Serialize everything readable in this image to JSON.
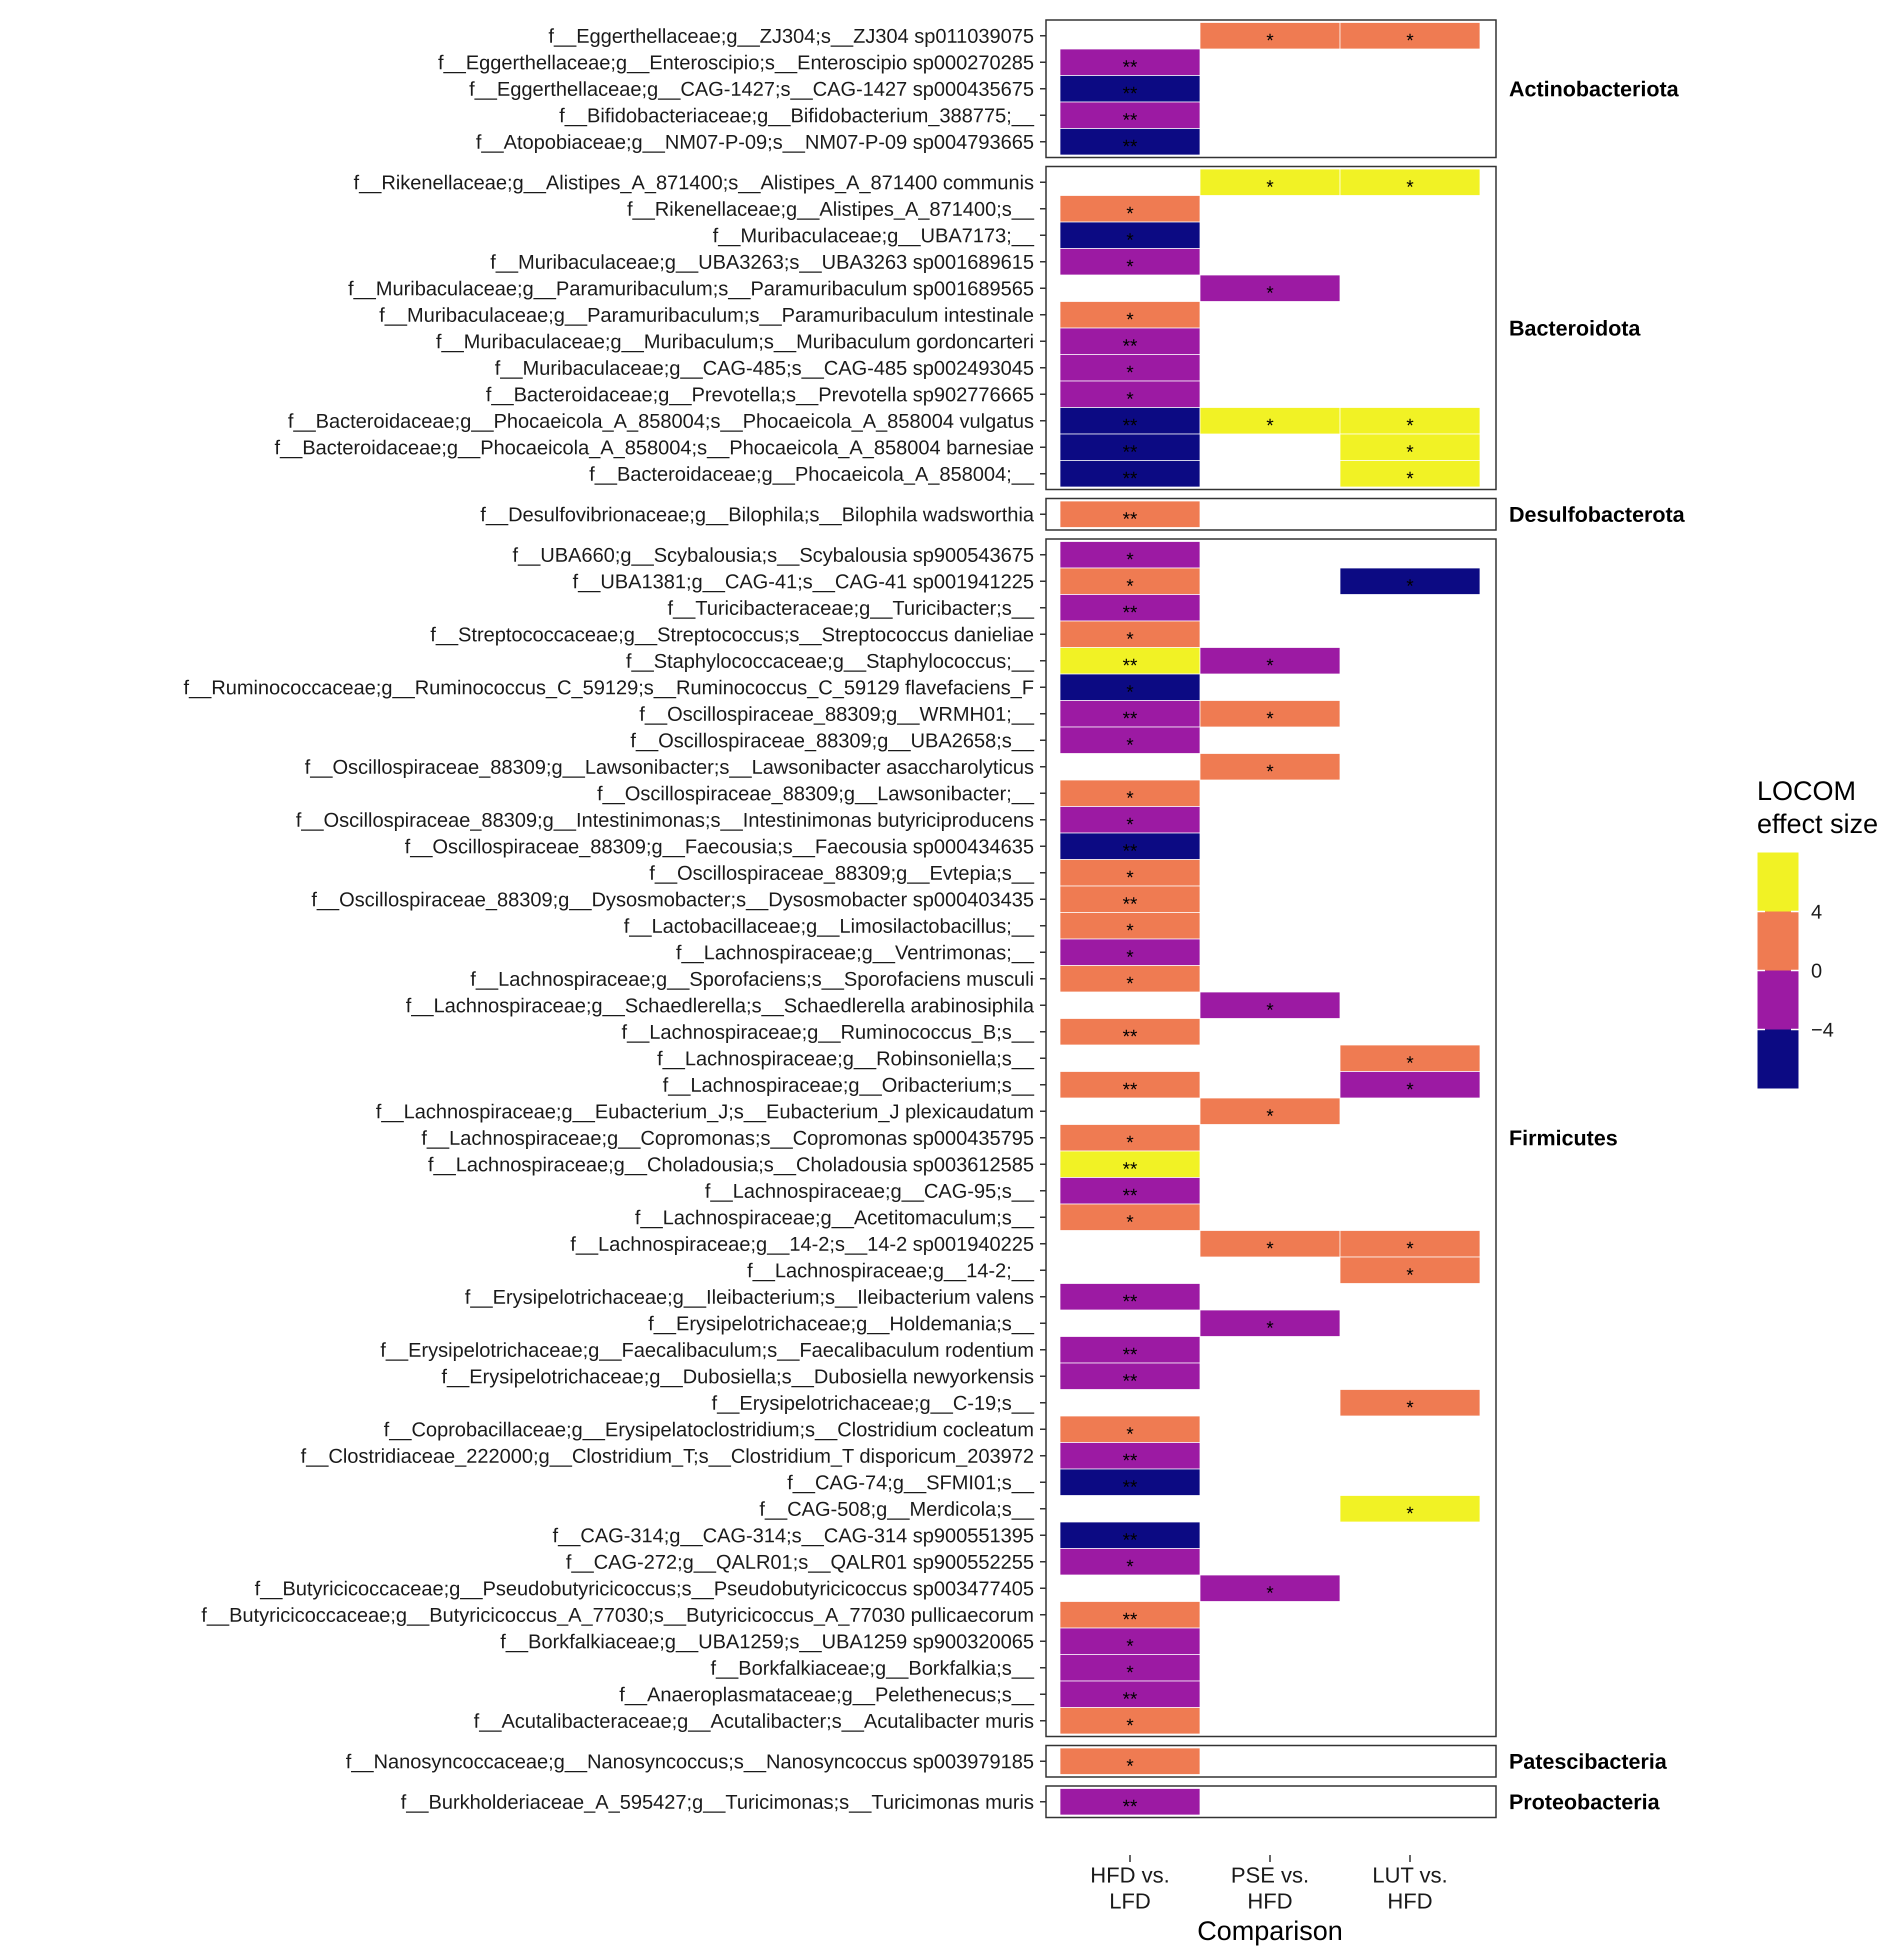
{
  "chart_data": {
    "type": "heatmap",
    "x_title": "Comparison",
    "columns": [
      "HFD vs.\nLFD",
      "PSE vs.\nHFD",
      "LUT vs.\nHFD"
    ],
    "legend": {
      "title": "LOCOM\neffect size",
      "bins": [
        {
          "color": "#f1f225"
        },
        {
          "color": "#ef7b52"
        },
        {
          "color": "#9c1aa3"
        },
        {
          "color": "#0c0a83"
        }
      ],
      "tick_labels": [
        "4",
        "0",
        "−4"
      ]
    },
    "colors": {
      "Y": "#f1f225",
      "O": "#ef7b52",
      "P": "#9c1aa3",
      "N": "#0c0a83"
    },
    "color_key": {
      "Y": "> 4",
      "O": "0 to 4",
      "P": "-4 to 0",
      "N": "< -4"
    },
    "groups": [
      {
        "phylum": "Actinobacteriota",
        "rows": [
          {
            "label": "f__Eggerthellaceae;g__ZJ304;s__ZJ304 sp011039075",
            "cells": [
              null,
              [
                "O",
                "*"
              ],
              [
                "O",
                "*"
              ]
            ]
          },
          {
            "label": "f__Eggerthellaceae;g__Enteroscipio;s__Enteroscipio sp000270285",
            "cells": [
              [
                "P",
                "**"
              ],
              null,
              null
            ]
          },
          {
            "label": "f__Eggerthellaceae;g__CAG-1427;s__CAG-1427 sp000435675",
            "cells": [
              [
                "N",
                "**"
              ],
              null,
              null
            ]
          },
          {
            "label": "f__Bifidobacteriaceae;g__Bifidobacterium_388775;__",
            "cells": [
              [
                "P",
                "**"
              ],
              null,
              null
            ]
          },
          {
            "label": "f__Atopobiaceae;g__NM07-P-09;s__NM07-P-09 sp004793665",
            "cells": [
              [
                "N",
                "**"
              ],
              null,
              null
            ]
          }
        ]
      },
      {
        "phylum": "Bacteroidota",
        "rows": [
          {
            "label": "f__Rikenellaceae;g__Alistipes_A_871400;s__Alistipes_A_871400 communis",
            "cells": [
              null,
              [
                "Y",
                "*"
              ],
              [
                "Y",
                "*"
              ]
            ]
          },
          {
            "label": "f__Rikenellaceae;g__Alistipes_A_871400;s__",
            "cells": [
              [
                "O",
                "*"
              ],
              null,
              null
            ]
          },
          {
            "label": "f__Muribaculaceae;g__UBA7173;__",
            "cells": [
              [
                "N",
                "*"
              ],
              null,
              null
            ]
          },
          {
            "label": "f__Muribaculaceae;g__UBA3263;s__UBA3263 sp001689615",
            "cells": [
              [
                "P",
                "*"
              ],
              null,
              null
            ]
          },
          {
            "label": "f__Muribaculaceae;g__Paramuribaculum;s__Paramuribaculum sp001689565",
            "cells": [
              null,
              [
                "P",
                "*"
              ],
              null
            ]
          },
          {
            "label": "f__Muribaculaceae;g__Paramuribaculum;s__Paramuribaculum intestinale",
            "cells": [
              [
                "O",
                "*"
              ],
              null,
              null
            ]
          },
          {
            "label": "f__Muribaculaceae;g__Muribaculum;s__Muribaculum gordoncarteri",
            "cells": [
              [
                "P",
                "**"
              ],
              null,
              null
            ]
          },
          {
            "label": "f__Muribaculaceae;g__CAG-485;s__CAG-485 sp002493045",
            "cells": [
              [
                "P",
                "*"
              ],
              null,
              null
            ]
          },
          {
            "label": "f__Bacteroidaceae;g__Prevotella;s__Prevotella sp902776665",
            "cells": [
              [
                "P",
                "*"
              ],
              null,
              null
            ]
          },
          {
            "label": "f__Bacteroidaceae;g__Phocaeicola_A_858004;s__Phocaeicola_A_858004 vulgatus",
            "cells": [
              [
                "N",
                "**"
              ],
              [
                "Y",
                "*"
              ],
              [
                "Y",
                "*"
              ]
            ]
          },
          {
            "label": "f__Bacteroidaceae;g__Phocaeicola_A_858004;s__Phocaeicola_A_858004 barnesiae",
            "cells": [
              [
                "N",
                "**"
              ],
              null,
              [
                "Y",
                "*"
              ]
            ]
          },
          {
            "label": "f__Bacteroidaceae;g__Phocaeicola_A_858004;__",
            "cells": [
              [
                "N",
                "**"
              ],
              null,
              [
                "Y",
                "*"
              ]
            ]
          }
        ]
      },
      {
        "phylum": "Desulfobacterota",
        "rows": [
          {
            "label": "f__Desulfovibrionaceae;g__Bilophila;s__Bilophila wadsworthia",
            "cells": [
              [
                "O",
                "**"
              ],
              null,
              null
            ]
          }
        ]
      },
      {
        "phylum": "Firmicutes",
        "rows": [
          {
            "label": "f__UBA660;g__Scybalousia;s__Scybalousia sp900543675",
            "cells": [
              [
                "P",
                "*"
              ],
              null,
              null
            ]
          },
          {
            "label": "f__UBA1381;g__CAG-41;s__CAG-41 sp001941225",
            "cells": [
              [
                "O",
                "*"
              ],
              null,
              [
                "N",
                "*"
              ]
            ]
          },
          {
            "label": "f__Turicibacteraceae;g__Turicibacter;s__",
            "cells": [
              [
                "P",
                "**"
              ],
              null,
              null
            ]
          },
          {
            "label": "f__Streptococcaceae;g__Streptococcus;s__Streptococcus danieliae",
            "cells": [
              [
                "O",
                "*"
              ],
              null,
              null
            ]
          },
          {
            "label": "f__Staphylococcaceae;g__Staphylococcus;__",
            "cells": [
              [
                "Y",
                "**"
              ],
              [
                "P",
                "*"
              ],
              null
            ]
          },
          {
            "label": "f__Ruminococcaceae;g__Ruminococcus_C_59129;s__Ruminococcus_C_59129 flavefaciens_F",
            "cells": [
              [
                "N",
                "*"
              ],
              null,
              null
            ]
          },
          {
            "label": "f__Oscillospiraceae_88309;g__WRMH01;__",
            "cells": [
              [
                "P",
                "**"
              ],
              [
                "O",
                "*"
              ],
              null
            ]
          },
          {
            "label": "f__Oscillospiraceae_88309;g__UBA2658;s__",
            "cells": [
              [
                "P",
                "*"
              ],
              null,
              null
            ]
          },
          {
            "label": "f__Oscillospiraceae_88309;g__Lawsonibacter;s__Lawsonibacter asaccharolyticus",
            "cells": [
              null,
              [
                "O",
                "*"
              ],
              null
            ]
          },
          {
            "label": "f__Oscillospiraceae_88309;g__Lawsonibacter;__",
            "cells": [
              [
                "O",
                "*"
              ],
              null,
              null
            ]
          },
          {
            "label": "f__Oscillospiraceae_88309;g__Intestinimonas;s__Intestinimonas butyriciproducens",
            "cells": [
              [
                "P",
                "*"
              ],
              null,
              null
            ]
          },
          {
            "label": "f__Oscillospiraceae_88309;g__Faecousia;s__Faecousia sp000434635",
            "cells": [
              [
                "N",
                "**"
              ],
              null,
              null
            ]
          },
          {
            "label": "f__Oscillospiraceae_88309;g__Evtepia;s__",
            "cells": [
              [
                "O",
                "*"
              ],
              null,
              null
            ]
          },
          {
            "label": "f__Oscillospiraceae_88309;g__Dysosmobacter;s__Dysosmobacter sp000403435",
            "cells": [
              [
                "O",
                "**"
              ],
              null,
              null
            ]
          },
          {
            "label": "f__Lactobacillaceae;g__Limosilactobacillus;__",
            "cells": [
              [
                "O",
                "*"
              ],
              null,
              null
            ]
          },
          {
            "label": "f__Lachnospiraceae;g__Ventrimonas;__",
            "cells": [
              [
                "P",
                "*"
              ],
              null,
              null
            ]
          },
          {
            "label": "f__Lachnospiraceae;g__Sporofaciens;s__Sporofaciens musculi",
            "cells": [
              [
                "O",
                "*"
              ],
              null,
              null
            ]
          },
          {
            "label": "f__Lachnospiraceae;g__Schaedlerella;s__Schaedlerella arabinosiphila",
            "cells": [
              null,
              [
                "P",
                "*"
              ],
              null
            ]
          },
          {
            "label": "f__Lachnospiraceae;g__Ruminococcus_B;s__",
            "cells": [
              [
                "O",
                "**"
              ],
              null,
              null
            ]
          },
          {
            "label": "f__Lachnospiraceae;g__Robinsoniella;s__",
            "cells": [
              null,
              null,
              [
                "O",
                "*"
              ]
            ]
          },
          {
            "label": "f__Lachnospiraceae;g__Oribacterium;s__",
            "cells": [
              [
                "O",
                "**"
              ],
              null,
              [
                "P",
                "*"
              ]
            ]
          },
          {
            "label": "f__Lachnospiraceae;g__Eubacterium_J;s__Eubacterium_J plexicaudatum",
            "cells": [
              null,
              [
                "O",
                "*"
              ],
              null
            ]
          },
          {
            "label": "f__Lachnospiraceae;g__Copromonas;s__Copromonas sp000435795",
            "cells": [
              [
                "O",
                "*"
              ],
              null,
              null
            ]
          },
          {
            "label": "f__Lachnospiraceae;g__Choladousia;s__Choladousia sp003612585",
            "cells": [
              [
                "Y",
                "**"
              ],
              null,
              null
            ]
          },
          {
            "label": "f__Lachnospiraceae;g__CAG-95;s__",
            "cells": [
              [
                "P",
                "**"
              ],
              null,
              null
            ]
          },
          {
            "label": "f__Lachnospiraceae;g__Acetitomaculum;s__",
            "cells": [
              [
                "O",
                "*"
              ],
              null,
              null
            ]
          },
          {
            "label": "f__Lachnospiraceae;g__14-2;s__14-2 sp001940225",
            "cells": [
              null,
              [
                "O",
                "*"
              ],
              [
                "O",
                "*"
              ]
            ]
          },
          {
            "label": "f__Lachnospiraceae;g__14-2;__",
            "cells": [
              null,
              null,
              [
                "O",
                "*"
              ]
            ]
          },
          {
            "label": "f__Erysipelotrichaceae;g__Ileibacterium;s__Ileibacterium valens",
            "cells": [
              [
                "P",
                "**"
              ],
              null,
              null
            ]
          },
          {
            "label": "f__Erysipelotrichaceae;g__Holdemania;s__",
            "cells": [
              null,
              [
                "P",
                "*"
              ],
              null
            ]
          },
          {
            "label": "f__Erysipelotrichaceae;g__Faecalibaculum;s__Faecalibaculum rodentium",
            "cells": [
              [
                "P",
                "**"
              ],
              null,
              null
            ]
          },
          {
            "label": "f__Erysipelotrichaceae;g__Dubosiella;s__Dubosiella newyorkensis",
            "cells": [
              [
                "P",
                "**"
              ],
              null,
              null
            ]
          },
          {
            "label": "f__Erysipelotrichaceae;g__C-19;s__",
            "cells": [
              null,
              null,
              [
                "O",
                "*"
              ]
            ]
          },
          {
            "label": "f__Coprobacillaceae;g__Erysipelatoclostridium;s__Clostridium cocleatum",
            "cells": [
              [
                "O",
                "*"
              ],
              null,
              null
            ]
          },
          {
            "label": "f__Clostridiaceae_222000;g__Clostridium_T;s__Clostridium_T disporicum_203972",
            "cells": [
              [
                "P",
                "**"
              ],
              null,
              null
            ]
          },
          {
            "label": "f__CAG-74;g__SFMI01;s__",
            "cells": [
              [
                "N",
                "**"
              ],
              null,
              null
            ]
          },
          {
            "label": "f__CAG-508;g__Merdicola;s__",
            "cells": [
              null,
              null,
              [
                "Y",
                "*"
              ]
            ]
          },
          {
            "label": "f__CAG-314;g__CAG-314;s__CAG-314 sp900551395",
            "cells": [
              [
                "N",
                "**"
              ],
              null,
              null
            ]
          },
          {
            "label": "f__CAG-272;g__QALR01;s__QALR01 sp900552255",
            "cells": [
              [
                "P",
                "*"
              ],
              null,
              null
            ]
          },
          {
            "label": "f__Butyricicoccaceae;g__Pseudobutyricicoccus;s__Pseudobutyricicoccus sp003477405",
            "cells": [
              null,
              [
                "P",
                "*"
              ],
              null
            ]
          },
          {
            "label": "f__Butyricicoccaceae;g__Butyricicoccus_A_77030;s__Butyricicoccus_A_77030 pullicaecorum",
            "cells": [
              [
                "O",
                "**"
              ],
              null,
              null
            ]
          },
          {
            "label": "f__Borkfalkiaceae;g__UBA1259;s__UBA1259 sp900320065",
            "cells": [
              [
                "P",
                "*"
              ],
              null,
              null
            ]
          },
          {
            "label": "f__Borkfalkiaceae;g__Borkfalkia;s__",
            "cells": [
              [
                "P",
                "*"
              ],
              null,
              null
            ]
          },
          {
            "label": "f__Anaeroplasmataceae;g__Pelethenecus;s__",
            "cells": [
              [
                "P",
                "**"
              ],
              null,
              null
            ]
          },
          {
            "label": "f__Acutalibacteraceae;g__Acutalibacter;s__Acutalibacter muris",
            "cells": [
              [
                "O",
                "*"
              ],
              null,
              null
            ]
          }
        ]
      },
      {
        "phylum": "Patescibacteria",
        "rows": [
          {
            "label": "f__Nanosyncoccaceae;g__Nanosyncoccus;s__Nanosyncoccus sp003979185",
            "cells": [
              [
                "O",
                "*"
              ],
              null,
              null
            ]
          }
        ]
      },
      {
        "phylum": "Proteobacteria",
        "rows": [
          {
            "label": "f__Burkholderiaceae_A_595427;g__Turicimonas;s__Turicimonas muris",
            "cells": [
              [
                "P",
                "**"
              ],
              null,
              null
            ]
          }
        ]
      }
    ]
  }
}
